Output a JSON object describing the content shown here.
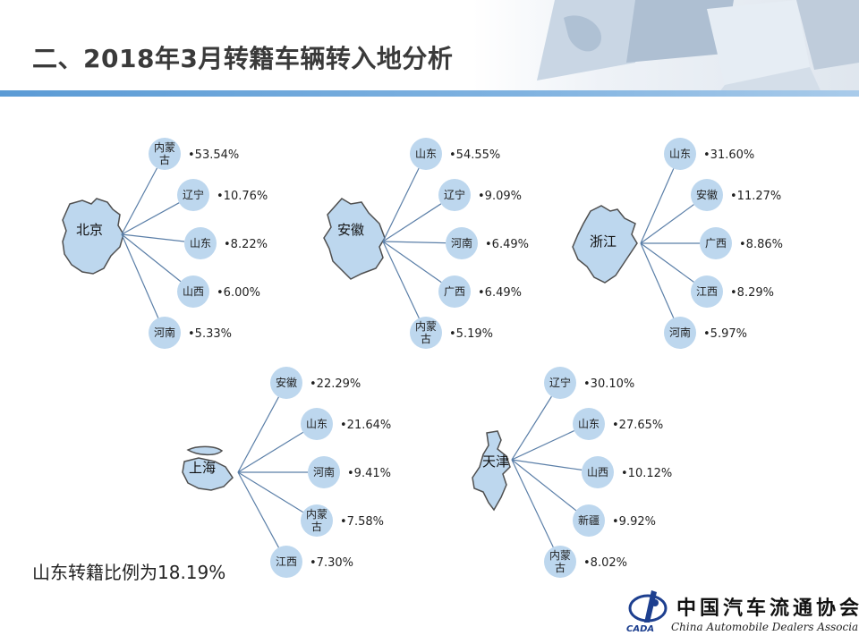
{
  "title": "二、2018年3月转籍车辆转入地分析",
  "note": "山东转籍比例为18.19%",
  "logo": {
    "cn": "中国汽车流通协会",
    "en": "China Automobile Dealers Association",
    "abbr": "CADA"
  },
  "colors": {
    "node_fill": "#bdd7ee",
    "line": "#5b7fa8",
    "map_fill": "#bdd7ee",
    "map_stroke": "#4f4f4f",
    "accent": "#5b9bd5"
  },
  "groups": [
    {
      "region": "北京",
      "items": [
        {
          "province": "内蒙古",
          "lines": [
            "内蒙",
            "古"
          ],
          "percent": "•53.54%"
        },
        {
          "province": "辽宁",
          "lines": [
            "辽宁"
          ],
          "percent": "•10.76%"
        },
        {
          "province": "山东",
          "lines": [
            "山东"
          ],
          "percent": "•8.22%"
        },
        {
          "province": "山西",
          "lines": [
            "山西"
          ],
          "percent": "•6.00%"
        },
        {
          "province": "河南",
          "lines": [
            "河南"
          ],
          "percent": "•5.33%"
        }
      ]
    },
    {
      "region": "安徽",
      "items": [
        {
          "province": "山东",
          "lines": [
            "山东"
          ],
          "percent": "•54.55%"
        },
        {
          "province": "辽宁",
          "lines": [
            "辽宁"
          ],
          "percent": "•9.09%"
        },
        {
          "province": "河南",
          "lines": [
            "河南"
          ],
          "percent": "•6.49%"
        },
        {
          "province": "广西",
          "lines": [
            "广西"
          ],
          "percent": "•6.49%"
        },
        {
          "province": "内蒙古",
          "lines": [
            "内蒙",
            "古"
          ],
          "percent": "•5.19%"
        }
      ]
    },
    {
      "region": "浙江",
      "items": [
        {
          "province": "山东",
          "lines": [
            "山东"
          ],
          "percent": "•31.60%"
        },
        {
          "province": "安徽",
          "lines": [
            "安徽"
          ],
          "percent": "•11.27%"
        },
        {
          "province": "广西",
          "lines": [
            "广西"
          ],
          "percent": "•8.86%"
        },
        {
          "province": "江西",
          "lines": [
            "江西"
          ],
          "percent": "•8.29%"
        },
        {
          "province": "河南",
          "lines": [
            "河南"
          ],
          "percent": "•5.97%"
        }
      ]
    },
    {
      "region": "上海",
      "items": [
        {
          "province": "安徽",
          "lines": [
            "安徽"
          ],
          "percent": "•22.29%"
        },
        {
          "province": "山东",
          "lines": [
            "山东"
          ],
          "percent": "•21.64%"
        },
        {
          "province": "河南",
          "lines": [
            "河南"
          ],
          "percent": "•9.41%"
        },
        {
          "province": "内蒙古",
          "lines": [
            "内蒙",
            "古"
          ],
          "percent": "•7.58%"
        },
        {
          "province": "江西",
          "lines": [
            "江西"
          ],
          "percent": "•7.30%"
        }
      ]
    },
    {
      "region": "天津",
      "items": [
        {
          "province": "辽宁",
          "lines": [
            "辽宁"
          ],
          "percent": "•30.10%"
        },
        {
          "province": "山东",
          "lines": [
            "山东"
          ],
          "percent": "•27.65%"
        },
        {
          "province": "山西",
          "lines": [
            "山西"
          ],
          "percent": "•10.12%"
        },
        {
          "province": "新疆",
          "lines": [
            "新疆"
          ],
          "percent": "•9.92%"
        },
        {
          "province": "内蒙古",
          "lines": [
            "内蒙",
            "古"
          ],
          "percent": "•8.02%"
        }
      ]
    }
  ]
}
